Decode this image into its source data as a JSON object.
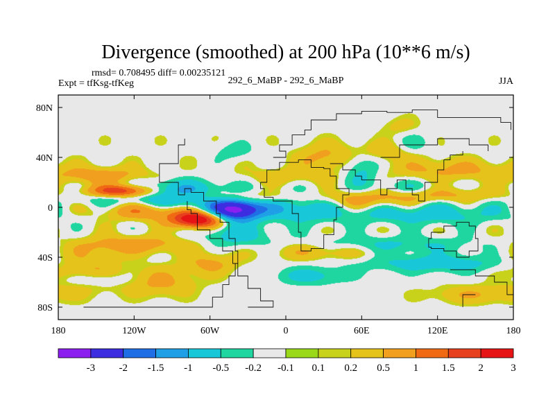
{
  "chart_data": {
    "type": "heatmap",
    "title": "Divergence (smoothed) at 200 hPa (10**6 m/s)",
    "stats_line": "rmsd= 0.708495 diff= 0.00235121",
    "expt_label": "Expt = tfKsg-tfKeg",
    "center_label": "292_6_MaBP - 292_6_MaBP",
    "season_label": "JJA",
    "x_axis": {
      "range": [
        -180,
        180
      ],
      "ticks": [
        {
          "value": -180,
          "label": "180"
        },
        {
          "value": -120,
          "label": "120W"
        },
        {
          "value": -60,
          "label": "60W"
        },
        {
          "value": 0,
          "label": "0"
        },
        {
          "value": 60,
          "label": "60E"
        },
        {
          "value": 120,
          "label": "120E"
        },
        {
          "value": 180,
          "label": "180"
        }
      ]
    },
    "y_axis": {
      "range": [
        -90,
        90
      ],
      "ticks": [
        {
          "value": 80,
          "label": "80N"
        },
        {
          "value": 40,
          "label": "40N"
        },
        {
          "value": 0,
          "label": "0"
        },
        {
          "value": -40,
          "label": "40S"
        },
        {
          "value": -80,
          "label": "80S"
        }
      ]
    },
    "contour_levels": [
      -3,
      -2,
      -1.5,
      -1,
      -0.5,
      -0.2,
      -0.1,
      0.1,
      0.2,
      0.5,
      1,
      1.5,
      2,
      3
    ],
    "colorbar": {
      "colors": [
        "#8b1ff0",
        "#3c2ee0",
        "#1f6ee6",
        "#1fa0e6",
        "#19c8d8",
        "#1fd6a0",
        "#e8e8e8",
        "#9ad81a",
        "#c8d21a",
        "#e6c31a",
        "#f0a01e",
        "#f06a14",
        "#e6401e",
        "#e61414"
      ],
      "labels": [
        "-3",
        "-2",
        "-1.5",
        "-1",
        "-0.5",
        "-0.2",
        "-0.1",
        "0.1",
        "0.2",
        "0.5",
        "1",
        "1.5",
        "2",
        "3"
      ]
    },
    "field_features": [
      {
        "lon": -40,
        "lat": -2,
        "sx": 14,
        "sy": 6,
        "amp": -3.4
      },
      {
        "lon": -80,
        "lat": 4,
        "sx": 22,
        "sy": 7,
        "amp": -1.2
      },
      {
        "lon": 10,
        "lat": 0,
        "sx": 25,
        "sy": 8,
        "amp": -1.0
      },
      {
        "lon": 110,
        "lat": -5,
        "sx": 45,
        "sy": 6,
        "amp": -0.8
      },
      {
        "lon": -90,
        "lat": 16,
        "sx": 35,
        "sy": 5,
        "amp": -0.7
      },
      {
        "lon": -130,
        "lat": 8,
        "sx": 30,
        "sy": 5,
        "amp": -0.6
      },
      {
        "lon": -40,
        "lat": -22,
        "sx": 18,
        "sy": 6,
        "amp": -0.8
      },
      {
        "lon": 80,
        "lat": -30,
        "sx": 50,
        "sy": 5,
        "amp": -0.6
      },
      {
        "lon": 120,
        "lat": -45,
        "sx": 40,
        "sy": 5,
        "amp": -0.8
      },
      {
        "lon": 20,
        "lat": -55,
        "sx": 20,
        "sy": 5,
        "amp": -0.7
      },
      {
        "lon": -150,
        "lat": -58,
        "sx": 20,
        "sy": 4,
        "amp": -0.5
      },
      {
        "lon": 60,
        "lat": 30,
        "sx": 10,
        "sy": 10,
        "amp": -0.7
      },
      {
        "lon": 100,
        "lat": 50,
        "sx": 10,
        "sy": 6,
        "amp": -0.5
      },
      {
        "lon": -40,
        "lat": 45,
        "sx": 10,
        "sy": 5,
        "amp": -0.4
      },
      {
        "lon": 95,
        "lat": 15,
        "sx": 18,
        "sy": 5,
        "amp": -0.5
      },
      {
        "lon": -130,
        "lat": 13,
        "sx": 18,
        "sy": 3.5,
        "amp": 2.4
      },
      {
        "lon": -70,
        "lat": -10,
        "sx": 14,
        "sy": 4.5,
        "amp": 2.7
      },
      {
        "lon": -100,
        "lat": -3,
        "sx": 30,
        "sy": 5,
        "amp": 1.2
      },
      {
        "lon": -145,
        "lat": 25,
        "sx": 25,
        "sy": 5,
        "amp": 0.8
      },
      {
        "lon": -40,
        "lat": 8,
        "sx": 40,
        "sy": 4,
        "amp": 0.7
      },
      {
        "lon": 60,
        "lat": 5,
        "sx": 30,
        "sy": 5,
        "amp": 0.7
      },
      {
        "lon": 120,
        "lat": 10,
        "sx": 40,
        "sy": 4,
        "amp": 0.6
      },
      {
        "lon": 130,
        "lat": 30,
        "sx": 35,
        "sy": 6,
        "amp": 0.6
      },
      {
        "lon": -120,
        "lat": -30,
        "sx": 30,
        "sy": 5,
        "amp": 0.8
      },
      {
        "lon": -160,
        "lat": -50,
        "sx": 20,
        "sy": 12,
        "amp": 0.6
      },
      {
        "lon": -100,
        "lat": -60,
        "sx": 20,
        "sy": 8,
        "amp": 0.6
      },
      {
        "lon": 30,
        "lat": -35,
        "sx": 30,
        "sy": 5,
        "amp": 0.6
      },
      {
        "lon": 150,
        "lat": -70,
        "sx": 25,
        "sy": 5,
        "amp": 0.5
      },
      {
        "lon": 30,
        "lat": 40,
        "sx": 15,
        "sy": 8,
        "amp": 0.6
      },
      {
        "lon": 80,
        "lat": 45,
        "sx": 20,
        "sy": 6,
        "amp": 0.5
      },
      {
        "lon": 0,
        "lat": 25,
        "sx": 25,
        "sy": 5,
        "amp": 0.4
      },
      {
        "lon": -60,
        "lat": -45,
        "sx": 15,
        "sy": 6,
        "amp": 0.6
      },
      {
        "lon": 90,
        "lat": 65,
        "sx": 10,
        "sy": 5,
        "amp": 0.3
      }
    ],
    "continent_outlines": [
      [
        [
          -160,
          -80
        ],
        [
          -60,
          -80
        ],
        [
          -58,
          -72
        ],
        [
          -50,
          -62
        ],
        [
          -45,
          -55
        ],
        [
          -40,
          -45
        ],
        [
          -38,
          -35
        ],
        [
          -40,
          -25
        ],
        [
          -45,
          -12
        ],
        [
          -52,
          -5
        ],
        [
          -55,
          5
        ],
        [
          -65,
          12
        ],
        [
          -75,
          15
        ],
        [
          -80,
          10
        ],
        [
          -85,
          20
        ],
        [
          -95,
          20
        ],
        [
          -100,
          35
        ],
        [
          -85,
          50
        ],
        [
          -80,
          55
        ]
      ],
      [
        [
          -30,
          -80
        ],
        [
          -10,
          -75
        ],
        [
          -20,
          -65
        ],
        [
          -30,
          -55
        ],
        [
          -38,
          -45
        ],
        [
          -42,
          -35
        ],
        [
          -50,
          -25
        ],
        [
          -60,
          -18
        ],
        [
          -70,
          -5
        ],
        [
          -75,
          -2
        ],
        [
          -78,
          5
        ]
      ],
      [
        [
          -20,
          20
        ],
        [
          -15,
          30
        ],
        [
          -5,
          36
        ],
        [
          10,
          38
        ],
        [
          20,
          32
        ],
        [
          30,
          31
        ],
        [
          35,
          25
        ],
        [
          40,
          15
        ],
        [
          50,
          10
        ],
        [
          45,
          0
        ],
        [
          40,
          -10
        ],
        [
          38,
          -22
        ],
        [
          30,
          -33
        ],
        [
          20,
          -35
        ],
        [
          12,
          -20
        ],
        [
          10,
          -5
        ],
        [
          5,
          5
        ],
        [
          -10,
          8
        ],
        [
          -17,
          15
        ],
        [
          -20,
          20
        ]
      ],
      [
        [
          -10,
          40
        ],
        [
          0,
          45
        ],
        [
          -5,
          50
        ],
        [
          5,
          58
        ],
        [
          15,
          62
        ],
        [
          20,
          70
        ],
        [
          40,
          75
        ],
        [
          60,
          77
        ],
        [
          80,
          76
        ],
        [
          100,
          78
        ],
        [
          120,
          72
        ],
        [
          140,
          72
        ],
        [
          170,
          68
        ],
        [
          178,
          62
        ]
      ],
      [
        [
          35,
          35
        ],
        [
          45,
          30
        ],
        [
          55,
          25
        ],
        [
          60,
          22
        ],
        [
          70,
          22
        ],
        [
          75,
          10
        ],
        [
          80,
          15
        ],
        [
          88,
          22
        ],
        [
          95,
          15
        ],
        [
          100,
          10
        ],
        [
          105,
          5
        ],
        [
          110,
          20
        ],
        [
          120,
          30
        ],
        [
          125,
          38
        ],
        [
          130,
          42
        ],
        [
          140,
          45
        ]
      ],
      [
        [
          75,
          40
        ],
        [
          90,
          50
        ],
        [
          110,
          50
        ],
        [
          120,
          55
        ],
        [
          135,
          55
        ],
        [
          145,
          50
        ],
        [
          160,
          45
        ]
      ],
      [
        [
          115,
          -20
        ],
        [
          125,
          -15
        ],
        [
          135,
          -12
        ],
        [
          145,
          -15
        ],
        [
          150,
          -25
        ],
        [
          152,
          -35
        ],
        [
          145,
          -40
        ],
        [
          135,
          -35
        ],
        [
          125,
          -33
        ],
        [
          115,
          -32
        ],
        [
          113,
          -25
        ],
        [
          115,
          -20
        ]
      ],
      [
        [
          130,
          -50
        ],
        [
          150,
          -55
        ],
        [
          165,
          -60
        ],
        [
          175,
          -70
        ],
        [
          180,
          -78
        ]
      ],
      [
        [
          150,
          -70
        ],
        [
          140,
          -80
        ]
      ]
    ]
  }
}
